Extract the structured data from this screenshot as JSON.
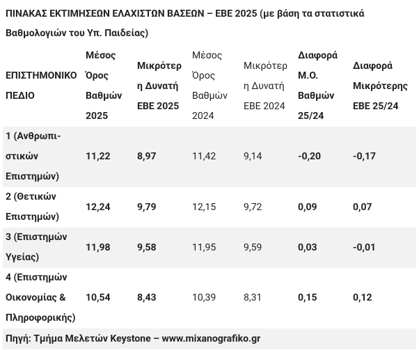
{
  "title": "ΠΙΝΑΚΑΣ ΕΚΤΙΜΗΣΕΩΝ ΕΛΑΧΙΣΤΩΝ ΒΑΣΕΩΝ – ΕΒΕ 2025 (με βάση τα στατιστικά Βαθμολογιών του Υπ. Παιδείας)",
  "table": {
    "header": [
      "ΕΠΙΣΤΗΜΟΝΙΚΟ ΠΕΔΙΟ",
      "Μέσος Όρος Βαθμών 2025",
      "Μικρότερη Δυνατή ΕΒΕ 2025",
      "Μέσος Όρος Βαθμών 2024",
      "Μικρότερη Δυνατή ΕΒΕ 2024",
      "Διαφορά Μ.Ο. Βαθμών 25/24",
      "Διαφορά Μικρότερης ΕΒΕ 25/24"
    ],
    "rows": [
      [
        "1 (Ανθρωπι-στικών Επιστημών)",
        "11,22",
        "8,97",
        "11,42",
        "9,14",
        "-0,20",
        "-0,17"
      ],
      [
        "2 (Θετικών Επιστημών)",
        "12,24",
        "9,79",
        "12,15",
        "9,72",
        "0,09",
        "0,07"
      ],
      [
        "3 (Επιστημών Υγείας)",
        "11,98",
        "9,58",
        "11,95",
        "9,59",
        "0,03",
        "-0,01"
      ],
      [
        "4 (Επιστημών Οικονομίας & Πληροφορικής)",
        "10,54",
        "8,43",
        "10,39",
        "8,31",
        "0,15",
        "0,12"
      ]
    ]
  },
  "source": "Πηγή: Τμήμα Μελετών Keystone – www.mixanografiko.gr"
}
